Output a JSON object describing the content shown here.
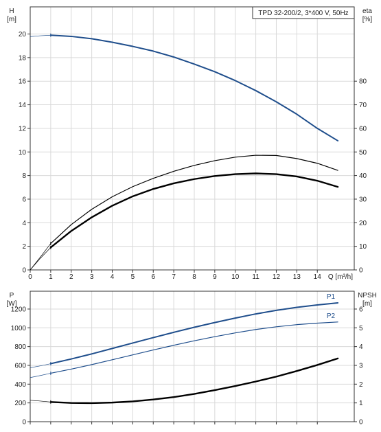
{
  "chart_data": [
    {
      "type": "line",
      "title": "TPD 32-200/2, 3*400 V, 50Hz",
      "x_label": "Q [m³/h]",
      "x_ticks": [
        0,
        1,
        2,
        3,
        4,
        5,
        6,
        7,
        8,
        9,
        10,
        11,
        12,
        13,
        14
      ],
      "xlim": [
        0,
        15.8
      ],
      "left_axis": {
        "label_top": "H",
        "label_unit": "[m]",
        "ticks": [
          0,
          2,
          4,
          6,
          8,
          10,
          12,
          14,
          16,
          18,
          20
        ],
        "ylim": [
          0,
          22.3
        ]
      },
      "right_axis": {
        "label_top": "eta",
        "label_unit": "[%]",
        "ticks": [
          0,
          10,
          20,
          30,
          40,
          50,
          60,
          70,
          80
        ],
        "ylim": [
          0,
          111.5
        ]
      },
      "grid": true,
      "series": [
        {
          "axis": "left",
          "color": "#1f4e8c",
          "extension": [
            [
              0,
              19.78
            ],
            [
              0.5,
              19.85
            ],
            [
              1.0,
              19.9
            ]
          ],
          "points": [
            [
              1.0,
              19.9
            ],
            [
              2,
              19.8
            ],
            [
              3,
              19.6
            ],
            [
              4,
              19.3
            ],
            [
              5,
              18.95
            ],
            [
              6,
              18.55
            ],
            [
              7,
              18.05
            ],
            [
              8,
              17.45
            ],
            [
              9,
              16.8
            ],
            [
              10,
              16.05
            ],
            [
              11,
              15.2
            ],
            [
              12,
              14.25
            ],
            [
              13,
              13.2
            ],
            [
              14,
              12.0
            ],
            [
              15.0,
              10.95
            ]
          ]
        },
        {
          "axis": "right",
          "color": "#000000",
          "extension": [
            [
              0,
              0
            ],
            [
              0.5,
              5
            ],
            [
              1.0,
              9.5
            ]
          ],
          "points": [
            [
              1.0,
              9.5
            ],
            [
              2,
              16.5
            ],
            [
              3,
              22.3
            ],
            [
              4,
              27.2
            ],
            [
              5,
              31.2
            ],
            [
              6,
              34.3
            ],
            [
              7,
              36.7
            ],
            [
              8,
              38.5
            ],
            [
              9,
              39.8
            ],
            [
              10,
              40.6
            ],
            [
              11,
              40.9
            ],
            [
              12,
              40.6
            ],
            [
              13,
              39.6
            ],
            [
              14,
              37.8
            ],
            [
              15.0,
              35.2
            ]
          ]
        },
        {
          "axis": "right",
          "color": "#000000",
          "extension": [
            [
              0,
              0
            ],
            [
              0.5,
              5.5
            ],
            [
              1.0,
              11.2
            ]
          ],
          "points": [
            [
              1.0,
              11.2
            ],
            [
              2,
              19.2
            ],
            [
              3,
              25.7
            ],
            [
              4,
              31.0
            ],
            [
              5,
              35.3
            ],
            [
              6,
              38.8
            ],
            [
              7,
              41.8
            ],
            [
              8,
              44.3
            ],
            [
              9,
              46.3
            ],
            [
              10,
              47.8
            ],
            [
              11,
              48.6
            ],
            [
              12,
              48.5
            ],
            [
              13,
              47.2
            ],
            [
              14,
              45.2
            ],
            [
              15.0,
              42.2
            ]
          ]
        }
      ]
    },
    {
      "type": "line",
      "x_ticks": [
        0,
        1,
        2,
        3,
        4,
        5,
        6,
        7,
        8,
        9,
        10,
        11,
        12,
        13,
        14
      ],
      "xlim": [
        0,
        15.8
      ],
      "left_axis": {
        "label_top": "P",
        "label_unit": "[W]",
        "ticks": [
          0,
          200,
          400,
          600,
          800,
          1000,
          1200
        ],
        "ylim": [
          0,
          1390
        ]
      },
      "right_axis": {
        "label_top": "NPSH",
        "label_unit": "[m]",
        "ticks": [
          0,
          1,
          2,
          3,
          4,
          5,
          6
        ],
        "ylim": [
          0,
          6.95
        ]
      },
      "grid": true,
      "series": [
        {
          "name": "P1",
          "axis": "left",
          "color": "#1f4e8c",
          "extension": [
            [
              0,
              575
            ],
            [
              0.5,
              595
            ],
            [
              1.0,
              618
            ]
          ],
          "points": [
            [
              1.0,
              618
            ],
            [
              2,
              668
            ],
            [
              3,
              722
            ],
            [
              4,
              780
            ],
            [
              5,
              838
            ],
            [
              6,
              896
            ],
            [
              7,
              952
            ],
            [
              8,
              1006
            ],
            [
              9,
              1056
            ],
            [
              10,
              1104
            ],
            [
              11,
              1148
            ],
            [
              12,
              1186
            ],
            [
              13,
              1218
            ],
            [
              14,
              1244
            ],
            [
              15.0,
              1266
            ]
          ]
        },
        {
          "name": "P2",
          "axis": "left",
          "color": "#1f4e8c",
          "extension": [
            [
              0,
              470
            ],
            [
              0.5,
              492
            ],
            [
              1.0,
              516
            ]
          ],
          "points": [
            [
              1.0,
              516
            ],
            [
              2,
              560
            ],
            [
              3,
              608
            ],
            [
              4,
              660
            ],
            [
              5,
              712
            ],
            [
              6,
              764
            ],
            [
              7,
              814
            ],
            [
              8,
              862
            ],
            [
              9,
              906
            ],
            [
              10,
              946
            ],
            [
              11,
              982
            ],
            [
              12,
              1011
            ],
            [
              13,
              1034
            ],
            [
              14,
              1050
            ],
            [
              15.0,
              1062
            ]
          ]
        },
        {
          "axis": "right",
          "color": "#000000",
          "extension": [
            [
              0,
              1.14
            ],
            [
              0.5,
              1.1
            ],
            [
              1.0,
              1.05
            ]
          ],
          "points": [
            [
              1.0,
              1.05
            ],
            [
              2,
              1.0
            ],
            [
              3,
              0.99
            ],
            [
              4,
              1.02
            ],
            [
              5,
              1.08
            ],
            [
              6,
              1.18
            ],
            [
              7,
              1.31
            ],
            [
              8,
              1.48
            ],
            [
              9,
              1.68
            ],
            [
              10,
              1.9
            ],
            [
              11,
              2.14
            ],
            [
              12,
              2.4
            ],
            [
              13,
              2.7
            ],
            [
              14,
              3.02
            ],
            [
              15.0,
              3.37
            ]
          ]
        }
      ]
    }
  ]
}
